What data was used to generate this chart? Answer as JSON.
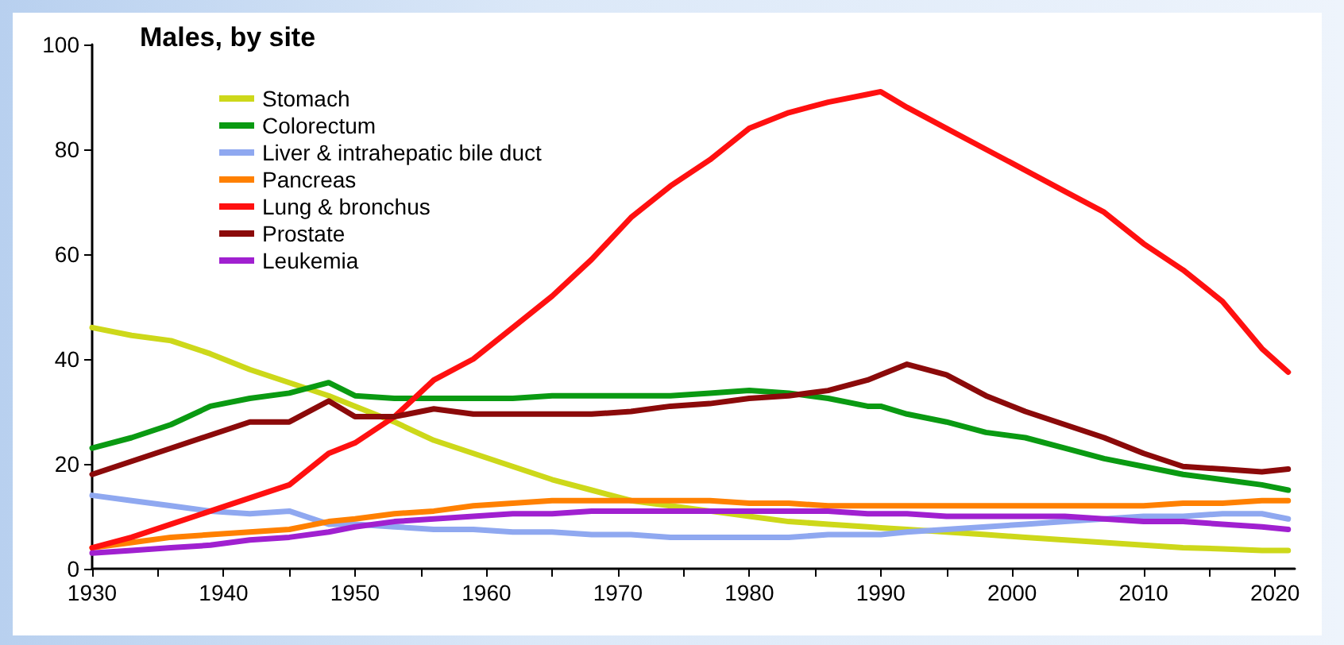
{
  "chart_data": {
    "type": "line",
    "title": "Males, by site",
    "x": [
      1930,
      1933,
      1936,
      1939,
      1942,
      1945,
      1948,
      1950,
      1953,
      1956,
      1959,
      1962,
      1965,
      1968,
      1971,
      1974,
      1977,
      1980,
      1983,
      1986,
      1989,
      1990,
      1992,
      1995,
      1998,
      2001,
      2004,
      2007,
      2010,
      2013,
      2016,
      2019,
      2021
    ],
    "series": [
      {
        "name": "Stomach",
        "color": "#cdd81a",
        "values": [
          46,
          44.5,
          43.5,
          41,
          38,
          35.5,
          33,
          31,
          28,
          24.5,
          22,
          19.5,
          17,
          15,
          13,
          12,
          11,
          10,
          9,
          8.5,
          8,
          7.8,
          7.5,
          7,
          6.5,
          6,
          5.5,
          5,
          4.5,
          4,
          3.8,
          3.5,
          3.5
        ]
      },
      {
        "name": "Colorectum",
        "color": "#0a9a12",
        "values": [
          23,
          25,
          27.5,
          31,
          32.5,
          33.5,
          35.5,
          33,
          32.5,
          32.5,
          32.5,
          32.5,
          33,
          33,
          33,
          33,
          33.5,
          34,
          33.5,
          32.5,
          31,
          31,
          29.5,
          28,
          26,
          25,
          23,
          21,
          19.5,
          18,
          17,
          16,
          15
        ]
      },
      {
        "name": "Liver & intrahepatic bile duct",
        "color": "#8fa8f0",
        "values": [
          14,
          13,
          12,
          11,
          10.5,
          11,
          8.5,
          8.5,
          8,
          7.5,
          7.5,
          7,
          7,
          6.5,
          6.5,
          6,
          6,
          6,
          6,
          6.5,
          6.5,
          6.5,
          7,
          7.5,
          8,
          8.5,
          9,
          9.5,
          10,
          10,
          10.5,
          10.5,
          9.5
        ]
      },
      {
        "name": "Pancreas",
        "color": "#ff8000",
        "values": [
          4,
          5,
          6,
          6.5,
          7,
          7.5,
          9,
          9.5,
          10.5,
          11,
          12,
          12.5,
          13,
          13,
          13,
          13,
          13,
          12.5,
          12.5,
          12,
          12,
          12,
          12,
          12,
          12,
          12,
          12,
          12,
          12,
          12.5,
          12.5,
          13,
          13
        ]
      },
      {
        "name": "Lung & bronchus",
        "color": "#ff1010",
        "values": [
          4,
          6,
          8.5,
          11,
          13.5,
          16,
          22,
          24,
          29,
          36,
          40,
          46,
          52,
          59,
          67,
          73,
          78,
          84,
          87,
          89,
          90.5,
          91,
          88,
          84,
          80,
          76,
          72,
          68,
          62,
          57,
          51,
          42,
          37.5
        ]
      },
      {
        "name": "Prostate",
        "color": "#8b0a0a",
        "values": [
          18,
          20.5,
          23,
          25.5,
          28,
          28,
          32,
          29,
          29,
          30.5,
          29.5,
          29.5,
          29.5,
          29.5,
          30,
          31,
          31.5,
          32.5,
          33,
          34,
          36,
          37,
          39,
          37,
          33,
          30,
          27.5,
          25,
          22,
          19.5,
          19,
          18.5,
          19
        ]
      },
      {
        "name": "Leukemia",
        "color": "#a020d0",
        "values": [
          3,
          3.5,
          4,
          4.5,
          5.5,
          6,
          7,
          8,
          9,
          9.5,
          10,
          10.5,
          10.5,
          11,
          11,
          11,
          11,
          11,
          11,
          11,
          10.5,
          10.5,
          10.5,
          10,
          10,
          10,
          10,
          9.5,
          9,
          9,
          8.5,
          8,
          7.5
        ]
      }
    ],
    "xlim": [
      1930,
      2021.5
    ],
    "xticks": [
      1930,
      {
        "value": 1935,
        "label": null
      },
      1940,
      {
        "value": 1945,
        "label": null
      },
      1950,
      {
        "value": 1955,
        "label": null
      },
      1960,
      {
        "value": 1965,
        "label": null
      },
      1970,
      {
        "value": 1975,
        "label": null
      },
      1980,
      {
        "value": 1985,
        "label": null
      },
      1990,
      {
        "value": 1995,
        "label": null
      },
      2000,
      {
        "value": 2005,
        "label": null
      },
      2010,
      {
        "value": 2015,
        "label": null
      },
      2020
    ],
    "ylim": [
      0,
      100
    ],
    "yticks": [
      0,
      20,
      40,
      60,
      80,
      100
    ],
    "grid": false,
    "legend": "top left",
    "marker": "none",
    "line_style": "solid"
  }
}
